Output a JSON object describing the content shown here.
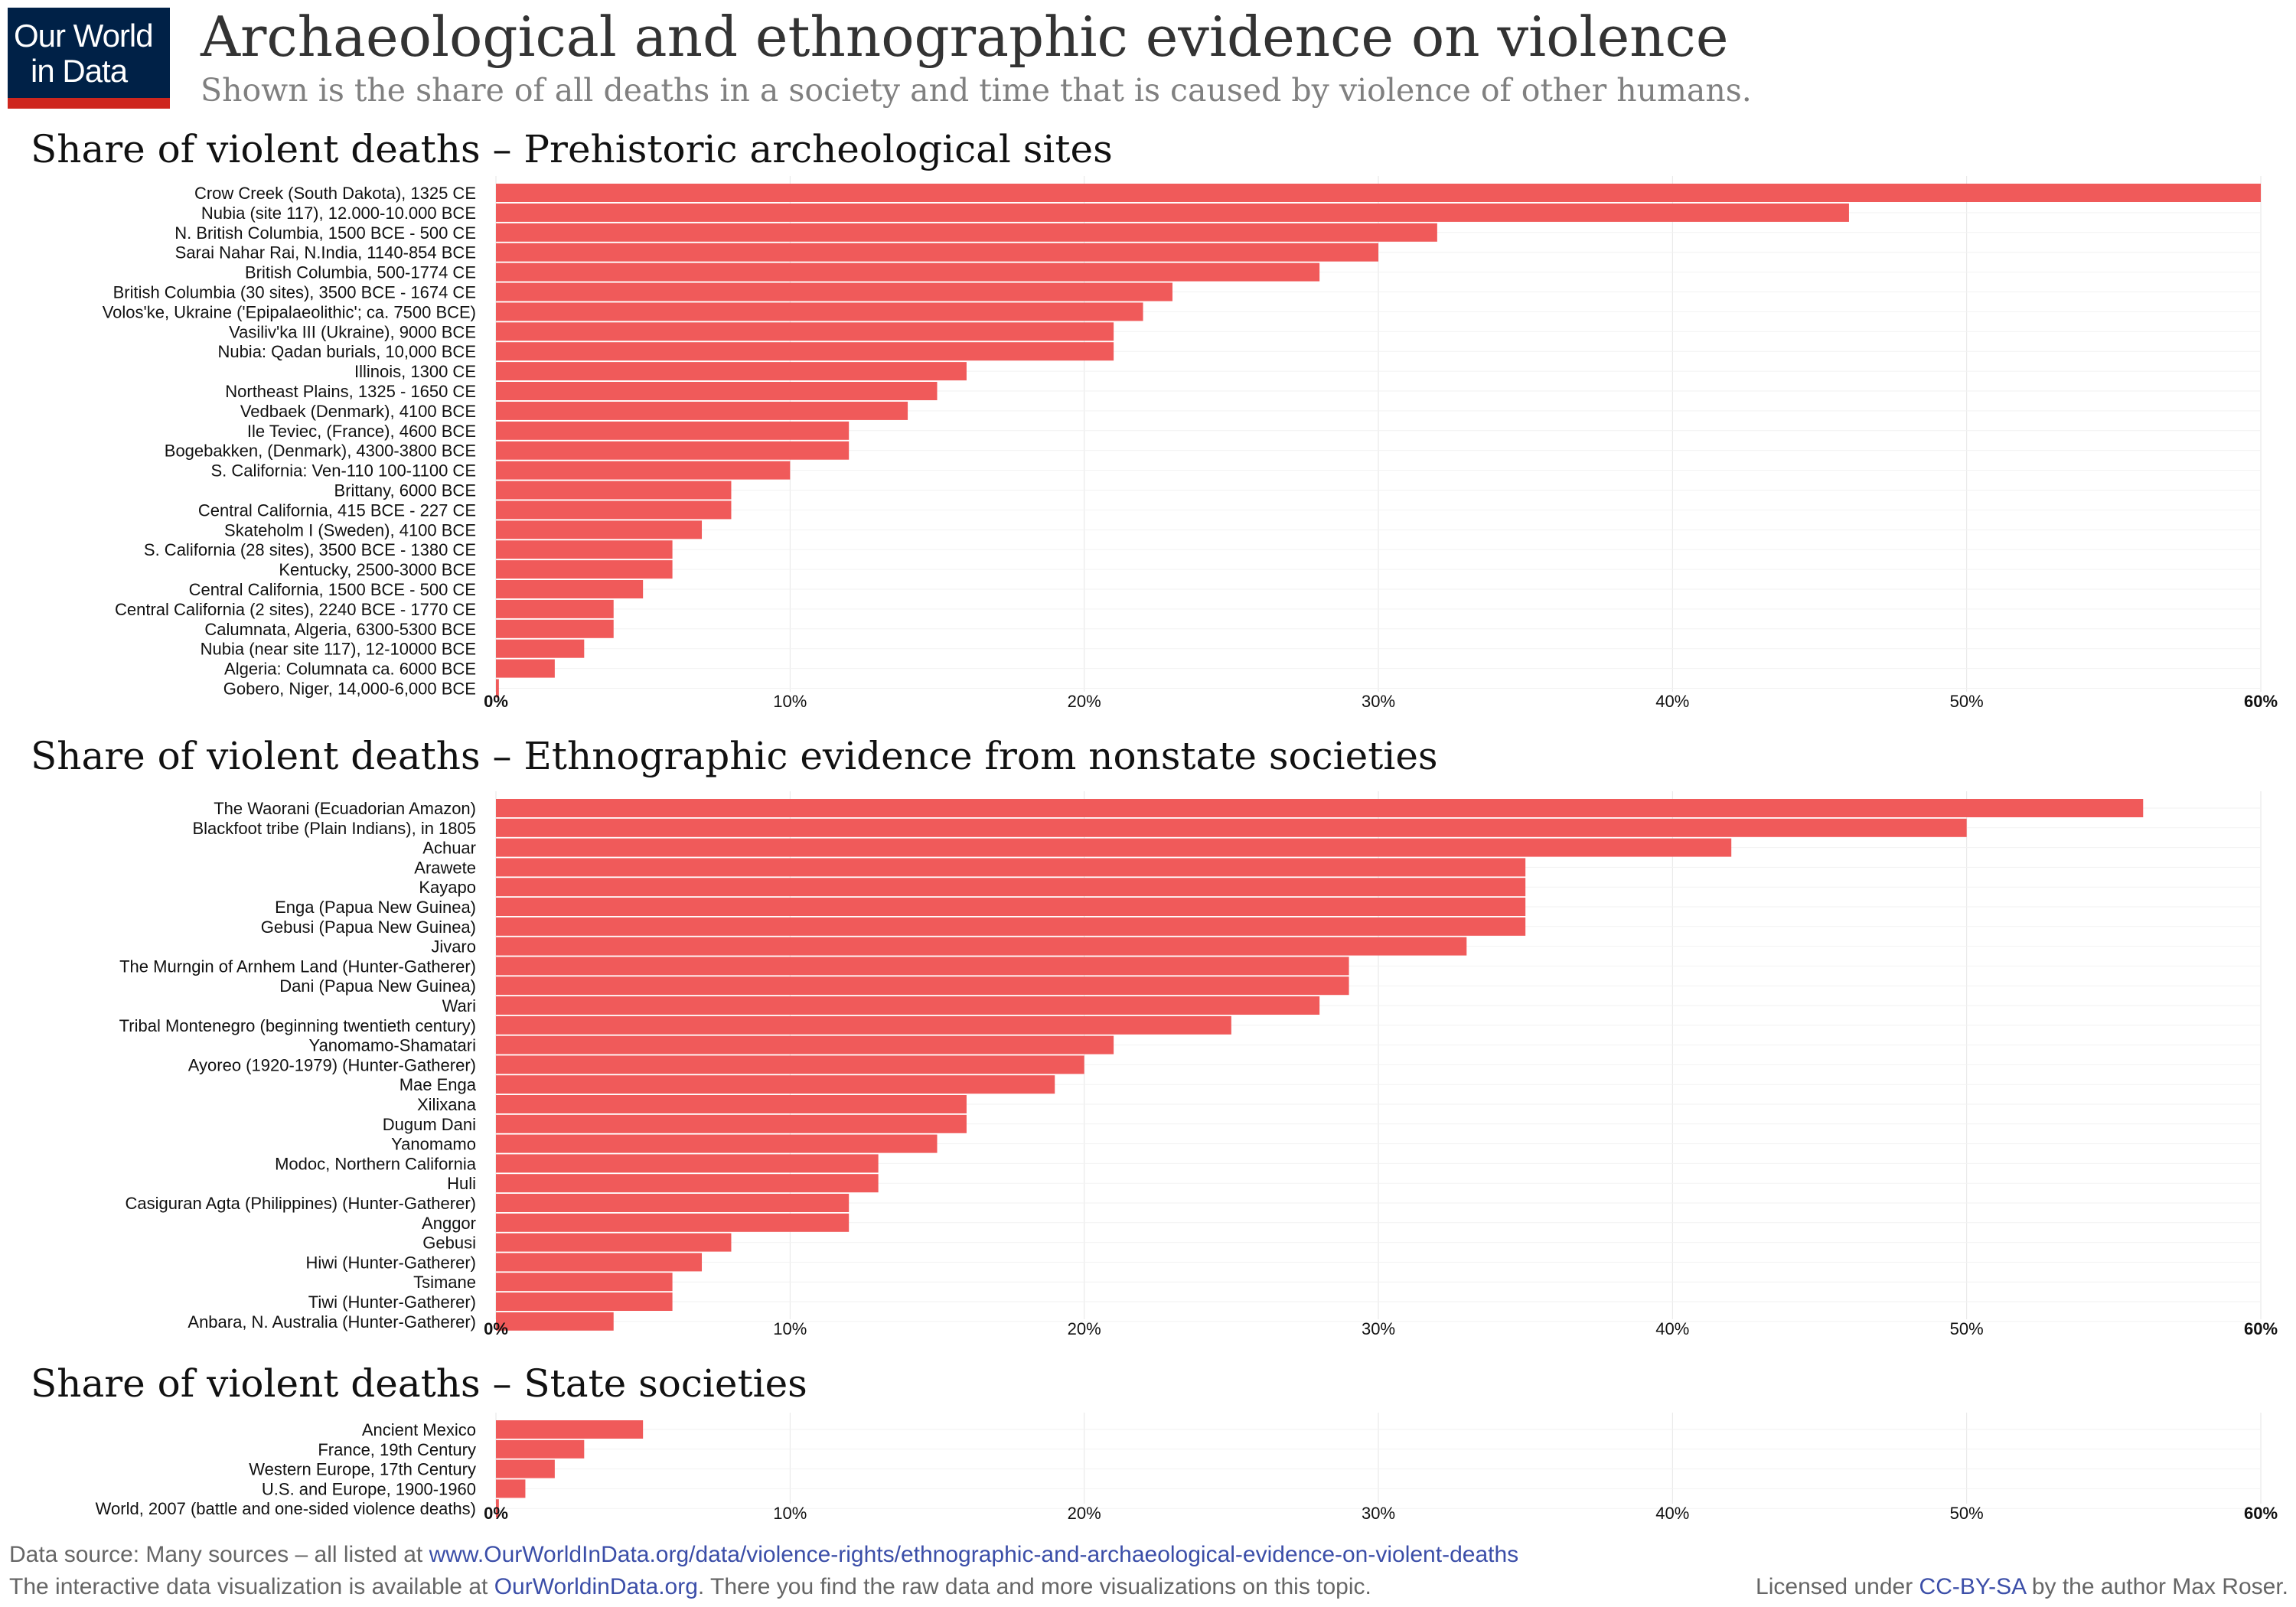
{
  "logo": {
    "line1": "Our World",
    "line2": "in Data"
  },
  "title": "Archaeological and ethnographic evidence on violence",
  "subtitle": "Shown is the share of all deaths in a society and time that is caused by violence of other humans.",
  "colors": {
    "bar": "#f05a5a",
    "grid": "#e6e6e6",
    "logo_bg": "#002147",
    "logo_accent": "#ce261e",
    "link": "#3b4ea8"
  },
  "chart_data": [
    {
      "type": "bar",
      "orientation": "horizontal",
      "title": "Share of violent deaths – Prehistoric archeological sites",
      "xlim": [
        0,
        60
      ],
      "ticks": [
        "0%",
        "10%",
        "20%",
        "30%",
        "40%",
        "50%",
        "60%"
      ],
      "categories": [
        "Crow Creek (South Dakota), 1325 CE",
        "Nubia (site 117), 12.000-10.000 BCE",
        "N. British Columbia, 1500 BCE - 500 CE",
        "Sarai Nahar Rai, N.India, 1140-854 BCE",
        "British Columbia, 500-1774 CE",
        "British Columbia (30 sites), 3500 BCE - 1674 CE",
        "Volos'ke, Ukraine ('Epipalaeolithic'; ca. 7500 BCE)",
        "Vasiliv'ka III (Ukraine), 9000 BCE",
        "Nubia: Qadan burials, 10,000 BCE",
        "Illinois, 1300 CE",
        "Northeast Plains, 1325 - 1650 CE",
        "Vedbaek (Denmark), 4100 BCE",
        "Ile Teviec, (France), 4600 BCE",
        "Bogebakken, (Denmark), 4300-3800 BCE",
        "S. California: Ven-110 100-1100 CE",
        "Brittany, 6000 BCE",
        "Central California, 415 BCE - 227 CE",
        "Skateholm I (Sweden), 4100 BCE",
        "S. California (28 sites), 3500 BCE - 1380 CE",
        "Kentucky, 2500-3000 BCE",
        "Central California, 1500 BCE - 500 CE",
        "Central California (2 sites), 2240 BCE - 1770 CE",
        "Calumnata, Algeria, 6300-5300 BCE",
        "Nubia (near site 117), 12-10000 BCE",
        "Algeria: Columnata ca. 6000 BCE",
        "Gobero, Niger, 14,000-6,000 BCE"
      ],
      "values": [
        60,
        46,
        32,
        30,
        28,
        23,
        22,
        21,
        21,
        16,
        15,
        14,
        12,
        12,
        10,
        8,
        8,
        7,
        6,
        6,
        5,
        4,
        4,
        3,
        2,
        0.1
      ]
    },
    {
      "type": "bar",
      "orientation": "horizontal",
      "title": "Share of violent deaths – Ethnographic evidence from nonstate societies",
      "xlim": [
        0,
        60
      ],
      "ticks": [
        "0%",
        "10%",
        "20%",
        "30%",
        "40%",
        "50%",
        "60%"
      ],
      "categories": [
        "The Waorani (Ecuadorian Amazon)",
        "Blackfoot tribe (Plain Indians), in 1805",
        "Achuar",
        "Arawete",
        "Kayapo",
        "Enga (Papua New Guinea)",
        "Gebusi (Papua New Guinea)",
        "Jivaro",
        "The Murngin of Arnhem Land (Hunter-Gatherer)",
        "Dani (Papua New Guinea)",
        "Wari",
        "Tribal Montenegro (beginning twentieth century)",
        "Yanomamo-Shamatari",
        "Ayoreo (1920-1979) (Hunter-Gatherer)",
        "Mae Enga",
        "Xilixana",
        "Dugum Dani",
        "Yanomamo",
        "Modoc, Northern California",
        "Huli",
        "Casiguran Agta (Philippines) (Hunter-Gatherer)",
        "Anggor",
        "Gebusi",
        "Hiwi (Hunter-Gatherer)",
        "Tsimane",
        "Tiwi (Hunter-Gatherer)",
        "Anbara, N. Australia (Hunter-Gatherer)"
      ],
      "values": [
        56,
        50,
        42,
        35,
        35,
        35,
        35,
        33,
        29,
        29,
        28,
        25,
        21,
        20,
        19,
        16,
        16,
        15,
        13,
        13,
        12,
        12,
        8,
        7,
        6,
        6,
        4
      ]
    },
    {
      "type": "bar",
      "orientation": "horizontal",
      "title": "Share of violent deaths – State societies",
      "xlim": [
        0,
        60
      ],
      "ticks": [
        "0%",
        "10%",
        "20%",
        "30%",
        "40%",
        "50%",
        "60%"
      ],
      "categories": [
        "Ancient Mexico",
        "France, 19th Century",
        "Western Europe, 17th Century",
        "U.S. and Europe, 1900-1960",
        "World, 2007 (battle and one-sided violence deaths)"
      ],
      "values": [
        5,
        3,
        2,
        1,
        0.1
      ]
    }
  ],
  "footer": {
    "source_prefix": "Data source: Many sources – all listed at ",
    "source_link": "www.OurWorldInData.org/data/violence-rights/ethnographic-and-archaeological-evidence-on-violent-deaths",
    "interactive_prefix": "The interactive data visualization is available at ",
    "interactive_link": "OurWorldinData.org",
    "interactive_suffix": ". There you find the raw data and more visualizations on this topic.",
    "license_prefix": "Licensed under ",
    "license_link": "CC-BY-SA",
    "license_suffix": " by the author Max Roser."
  }
}
